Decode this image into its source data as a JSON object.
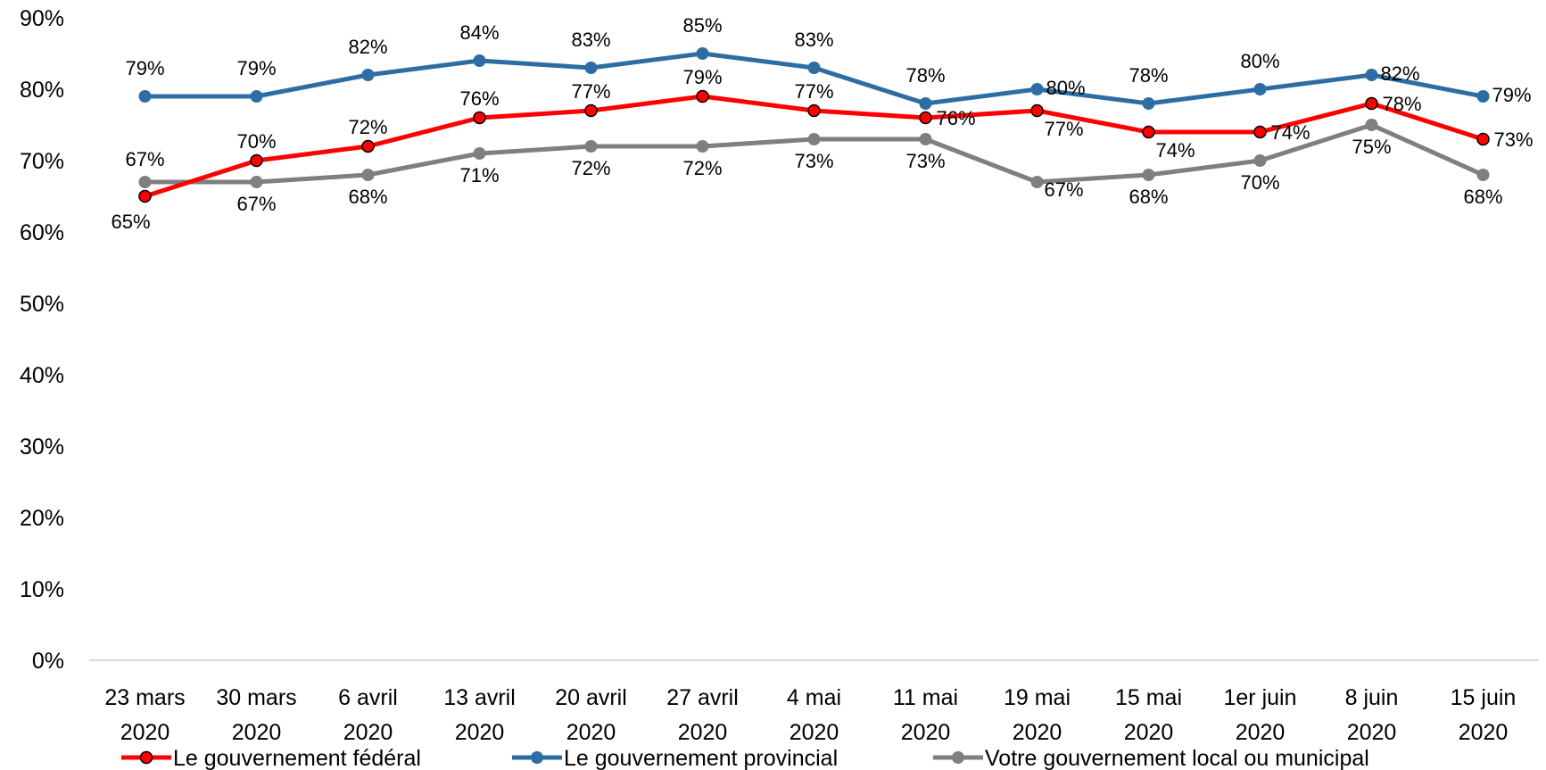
{
  "chart_data": {
    "type": "line",
    "title": "",
    "xlabel": "",
    "ylabel": "",
    "categories": [
      [
        "23 mars",
        "2020"
      ],
      [
        "30 mars",
        "2020"
      ],
      [
        "6 avril",
        "2020"
      ],
      [
        "13 avril",
        "2020"
      ],
      [
        "20 avril",
        "2020"
      ],
      [
        "27 avril",
        "2020"
      ],
      [
        "4 mai",
        "2020"
      ],
      [
        "11 mai",
        "2020"
      ],
      [
        "19 mai",
        "2020"
      ],
      [
        "15 mai",
        "2020"
      ],
      [
        "1er juin",
        "2020"
      ],
      [
        "8 juin",
        "2020"
      ],
      [
        "15 juin",
        "2020"
      ]
    ],
    "ylim": [
      0,
      90
    ],
    "y_ticks": [
      0,
      10,
      20,
      30,
      40,
      50,
      60,
      70,
      80,
      90
    ],
    "y_tick_format": "percent",
    "grid": false,
    "legend_position": "bottom",
    "series": [
      {
        "name": "Le gouvernement fédéral",
        "color": "#ff0000",
        "marker": "circle-red-outlined",
        "values": [
          65,
          70,
          72,
          76,
          77,
          79,
          77,
          76,
          77,
          74,
          74,
          78,
          73
        ]
      },
      {
        "name": "Le gouvernement provincial",
        "color": "#2e6da4",
        "marker": "circle",
        "values": [
          79,
          79,
          82,
          84,
          83,
          85,
          83,
          78,
          80,
          78,
          80,
          82,
          79
        ]
      },
      {
        "name": "Votre gouvernement local ou municipal",
        "color": "#7f7f7f",
        "marker": "circle",
        "values": [
          67,
          67,
          68,
          71,
          72,
          72,
          73,
          73,
          67,
          68,
          70,
          75,
          68
        ]
      }
    ]
  }
}
